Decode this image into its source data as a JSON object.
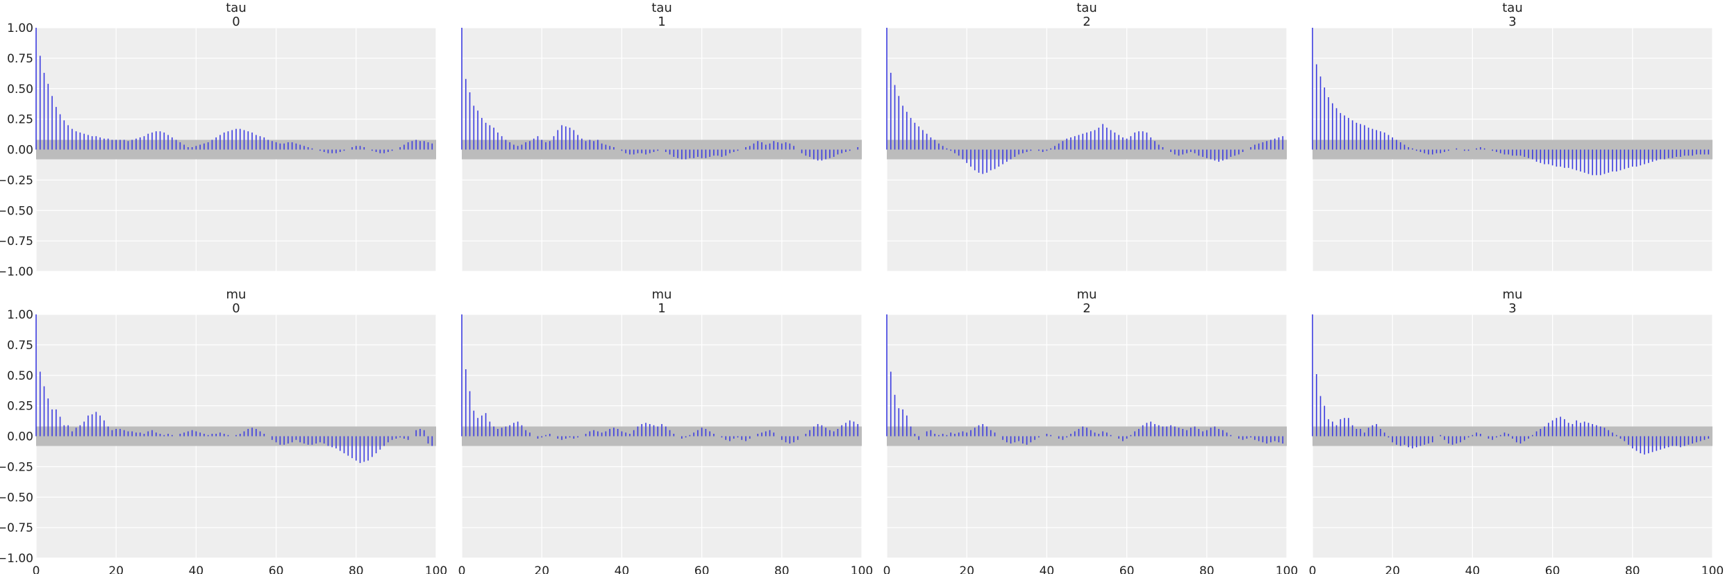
{
  "figure": {
    "bar_color": "#3b3be0",
    "band_color": "#bcbcbc",
    "panel_color": "#eeeeee"
  },
  "chart_data": [
    {
      "type": "bar",
      "title": "tau",
      "subtitle": "0",
      "xlim": [
        0,
        100
      ],
      "ylim": [
        -1,
        1
      ],
      "grid": true,
      "xticks": [
        "0",
        "20",
        "40",
        "60",
        "80",
        "100"
      ],
      "yticks": [
        "1.00",
        "0.75",
        "0.50",
        "0.25",
        "0.00",
        "−0.25",
        "−0.50",
        "−0.75",
        "−1.00"
      ],
      "band": [
        -0.08,
        0.08
      ],
      "lags": "0-99",
      "values": [
        1.0,
        0.77,
        0.63,
        0.54,
        0.44,
        0.35,
        0.29,
        0.24,
        0.2,
        0.17,
        0.15,
        0.14,
        0.13,
        0.12,
        0.11,
        0.11,
        0.1,
        0.09,
        0.09,
        0.08,
        0.08,
        0.08,
        0.08,
        0.07,
        0.08,
        0.09,
        0.1,
        0.11,
        0.13,
        0.14,
        0.15,
        0.15,
        0.14,
        0.12,
        0.1,
        0.08,
        0.06,
        0.04,
        0.02,
        0.02,
        0.03,
        0.04,
        0.05,
        0.06,
        0.08,
        0.1,
        0.12,
        0.14,
        0.15,
        0.16,
        0.17,
        0.17,
        0.16,
        0.15,
        0.14,
        0.12,
        0.11,
        0.1,
        0.08,
        0.07,
        0.06,
        0.05,
        0.05,
        0.06,
        0.06,
        0.05,
        0.04,
        0.03,
        0.02,
        0.01,
        0.0,
        -0.01,
        -0.02,
        -0.03,
        -0.03,
        -0.03,
        -0.02,
        -0.01,
        0.0,
        0.02,
        0.03,
        0.03,
        0.02,
        0.0,
        -0.01,
        -0.02,
        -0.03,
        -0.03,
        -0.02,
        -0.01,
        0.0,
        0.02,
        0.04,
        0.06,
        0.07,
        0.08,
        0.07,
        0.07,
        0.06,
        0.05
      ]
    },
    {
      "type": "bar",
      "title": "tau",
      "subtitle": "1",
      "xlim": [
        0,
        100
      ],
      "ylim": [
        -1,
        1
      ],
      "grid": true,
      "xticks": [
        "0",
        "20",
        "40",
        "60",
        "80",
        "100"
      ],
      "yticks": [
        "1.00",
        "0.75",
        "0.50",
        "0.25",
        "0.00",
        "−0.25",
        "−0.50",
        "−0.75",
        "−1.00"
      ],
      "band": [
        -0.08,
        0.08
      ],
      "lags": "0-99",
      "values": [
        1.0,
        0.58,
        0.47,
        0.36,
        0.32,
        0.26,
        0.22,
        0.2,
        0.18,
        0.14,
        0.11,
        0.08,
        0.06,
        0.04,
        0.03,
        0.04,
        0.06,
        0.07,
        0.09,
        0.11,
        0.08,
        0.06,
        0.07,
        0.11,
        0.16,
        0.2,
        0.19,
        0.18,
        0.16,
        0.12,
        0.09,
        0.07,
        0.08,
        0.07,
        0.08,
        0.05,
        0.04,
        0.03,
        0.02,
        0.0,
        -0.01,
        -0.03,
        -0.04,
        -0.04,
        -0.03,
        -0.03,
        -0.04,
        -0.03,
        -0.02,
        -0.01,
        0.0,
        -0.02,
        -0.04,
        -0.06,
        -0.07,
        -0.08,
        -0.08,
        -0.07,
        -0.07,
        -0.06,
        -0.07,
        -0.07,
        -0.06,
        -0.05,
        -0.05,
        -0.06,
        -0.05,
        -0.03,
        -0.02,
        -0.01,
        0.0,
        0.02,
        0.03,
        0.05,
        0.07,
        0.06,
        0.04,
        0.05,
        0.07,
        0.06,
        0.05,
        0.06,
        0.05,
        0.03,
        0.0,
        -0.03,
        -0.05,
        -0.06,
        -0.08,
        -0.09,
        -0.09,
        -0.08,
        -0.07,
        -0.06,
        -0.04,
        -0.03,
        -0.02,
        -0.01,
        0.0,
        0.02
      ]
    },
    {
      "type": "bar",
      "title": "tau",
      "subtitle": "2",
      "xlim": [
        0,
        100
      ],
      "ylim": [
        -1,
        1
      ],
      "grid": true,
      "xticks": [
        "0",
        "20",
        "40",
        "60",
        "80",
        "100"
      ],
      "yticks": [
        "1.00",
        "0.75",
        "0.50",
        "0.25",
        "0.00",
        "−0.25",
        "−0.50",
        "−0.75",
        "−1.00"
      ],
      "band": [
        -0.08,
        0.08
      ],
      "lags": "0-99",
      "values": [
        1.0,
        0.63,
        0.53,
        0.44,
        0.36,
        0.31,
        0.26,
        0.22,
        0.19,
        0.16,
        0.13,
        0.1,
        0.08,
        0.05,
        0.03,
        0.01,
        -0.01,
        -0.03,
        -0.05,
        -0.08,
        -0.11,
        -0.14,
        -0.17,
        -0.19,
        -0.2,
        -0.19,
        -0.17,
        -0.16,
        -0.14,
        -0.12,
        -0.1,
        -0.08,
        -0.06,
        -0.04,
        -0.03,
        -0.02,
        -0.01,
        0.0,
        -0.01,
        -0.02,
        -0.01,
        0.01,
        0.03,
        0.05,
        0.07,
        0.09,
        0.1,
        0.11,
        0.12,
        0.13,
        0.14,
        0.15,
        0.16,
        0.18,
        0.21,
        0.18,
        0.16,
        0.14,
        0.12,
        0.1,
        0.09,
        0.11,
        0.14,
        0.15,
        0.15,
        0.14,
        0.1,
        0.07,
        0.04,
        0.02,
        0.0,
        -0.02,
        -0.04,
        -0.05,
        -0.04,
        -0.03,
        -0.02,
        -0.03,
        -0.05,
        -0.06,
        -0.07,
        -0.08,
        -0.09,
        -0.1,
        -0.09,
        -0.08,
        -0.06,
        -0.05,
        -0.04,
        -0.02,
        0.0,
        0.02,
        0.04,
        0.05,
        0.06,
        0.07,
        0.08,
        0.09,
        0.1,
        0.11
      ]
    },
    {
      "type": "bar",
      "title": "tau",
      "subtitle": "3",
      "xlim": [
        0,
        100
      ],
      "ylim": [
        -1,
        1
      ],
      "grid": true,
      "xticks": [
        "0",
        "20",
        "40",
        "60",
        "80",
        "100"
      ],
      "yticks": [
        "1.00",
        "0.75",
        "0.50",
        "0.25",
        "0.00",
        "−0.25",
        "−0.50",
        "−0.75",
        "−1.00"
      ],
      "band": [
        -0.08,
        0.08
      ],
      "lags": "0-99",
      "values": [
        1.0,
        0.7,
        0.6,
        0.51,
        0.43,
        0.38,
        0.34,
        0.3,
        0.28,
        0.26,
        0.24,
        0.22,
        0.21,
        0.2,
        0.18,
        0.17,
        0.16,
        0.15,
        0.14,
        0.12,
        0.1,
        0.08,
        0.06,
        0.04,
        0.02,
        0.01,
        -0.01,
        -0.02,
        -0.03,
        -0.04,
        -0.04,
        -0.03,
        -0.03,
        -0.02,
        -0.01,
        0.0,
        0.01,
        0.0,
        -0.01,
        -0.01,
        0.0,
        0.01,
        0.02,
        0.01,
        0.0,
        -0.01,
        -0.02,
        -0.03,
        -0.04,
        -0.04,
        -0.05,
        -0.05,
        -0.05,
        -0.06,
        -0.07,
        -0.08,
        -0.1,
        -0.11,
        -0.12,
        -0.12,
        -0.13,
        -0.14,
        -0.14,
        -0.15,
        -0.15,
        -0.16,
        -0.17,
        -0.18,
        -0.19,
        -0.2,
        -0.21,
        -0.21,
        -0.21,
        -0.2,
        -0.19,
        -0.18,
        -0.18,
        -0.17,
        -0.16,
        -0.15,
        -0.14,
        -0.14,
        -0.13,
        -0.12,
        -0.11,
        -0.1,
        -0.09,
        -0.08,
        -0.08,
        -0.07,
        -0.07,
        -0.06,
        -0.06,
        -0.05,
        -0.05,
        -0.05,
        -0.04,
        -0.04,
        -0.04,
        -0.04
      ]
    },
    {
      "type": "bar",
      "title": "mu",
      "subtitle": "0",
      "xlim": [
        0,
        100
      ],
      "ylim": [
        -1,
        1
      ],
      "grid": true,
      "xticks": [
        "0",
        "20",
        "40",
        "60",
        "80",
        "100"
      ],
      "yticks": [
        "1.00",
        "0.75",
        "0.50",
        "0.25",
        "0.00",
        "−0.25",
        "−0.50",
        "−0.75",
        "−1.00"
      ],
      "band": [
        -0.08,
        0.08
      ],
      "lags": "0-99",
      "values": [
        1.0,
        0.53,
        0.41,
        0.31,
        0.22,
        0.22,
        0.16,
        0.09,
        0.09,
        0.04,
        0.07,
        0.09,
        0.12,
        0.17,
        0.18,
        0.2,
        0.17,
        0.13,
        0.08,
        0.05,
        0.06,
        0.06,
        0.05,
        0.04,
        0.04,
        0.03,
        0.03,
        0.02,
        0.04,
        0.05,
        0.03,
        0.02,
        0.01,
        0.02,
        0.01,
        0.0,
        0.02,
        0.03,
        0.04,
        0.05,
        0.04,
        0.03,
        0.02,
        0.01,
        0.02,
        0.02,
        0.03,
        0.02,
        0.01,
        0.0,
        0.01,
        0.02,
        0.04,
        0.06,
        0.07,
        0.06,
        0.04,
        0.02,
        0.0,
        -0.03,
        -0.05,
        -0.07,
        -0.07,
        -0.06,
        -0.05,
        -0.03,
        -0.05,
        -0.06,
        -0.07,
        -0.07,
        -0.06,
        -0.05,
        -0.06,
        -0.08,
        -0.09,
        -0.1,
        -0.12,
        -0.14,
        -0.16,
        -0.18,
        -0.2,
        -0.22,
        -0.21,
        -0.2,
        -0.17,
        -0.14,
        -0.11,
        -0.08,
        -0.05,
        -0.03,
        -0.02,
        -0.01,
        -0.02,
        -0.03,
        0.0,
        0.05,
        0.06,
        0.05,
        -0.06,
        -0.08
      ]
    },
    {
      "type": "bar",
      "title": "mu",
      "subtitle": "1",
      "xlim": [
        0,
        100
      ],
      "ylim": [
        -1,
        1
      ],
      "grid": true,
      "xticks": [
        "0",
        "20",
        "40",
        "60",
        "80",
        "100"
      ],
      "yticks": [
        "1.00",
        "0.75",
        "0.50",
        "0.25",
        "0.00",
        "−0.25",
        "−0.50",
        "−0.75",
        "−1.00"
      ],
      "band": [
        -0.08,
        0.08
      ],
      "lags": "0-99",
      "values": [
        1.0,
        0.55,
        0.37,
        0.21,
        0.15,
        0.17,
        0.19,
        0.12,
        0.08,
        0.06,
        0.07,
        0.08,
        0.09,
        0.11,
        0.12,
        0.09,
        0.05,
        0.03,
        0.0,
        -0.02,
        -0.01,
        0.01,
        0.02,
        0.0,
        -0.02,
        -0.03,
        -0.02,
        -0.01,
        -0.02,
        -0.01,
        0.0,
        0.02,
        0.04,
        0.05,
        0.04,
        0.03,
        0.04,
        0.06,
        0.07,
        0.06,
        0.04,
        0.03,
        0.02,
        0.05,
        0.08,
        0.1,
        0.11,
        0.1,
        0.09,
        0.08,
        0.1,
        0.08,
        0.05,
        0.02,
        0.0,
        -0.02,
        -0.01,
        0.01,
        0.03,
        0.05,
        0.07,
        0.06,
        0.04,
        0.02,
        0.0,
        -0.01,
        -0.03,
        -0.04,
        -0.02,
        -0.01,
        -0.03,
        -0.04,
        -0.02,
        0.0,
        0.02,
        0.03,
        0.04,
        0.05,
        0.03,
        0.0,
        -0.03,
        -0.05,
        -0.06,
        -0.05,
        -0.03,
        0.0,
        0.02,
        0.05,
        0.08,
        0.1,
        0.09,
        0.07,
        0.05,
        0.04,
        0.06,
        0.09,
        0.11,
        0.13,
        0.12,
        0.1
      ]
    },
    {
      "type": "bar",
      "title": "mu",
      "subtitle": "2",
      "xlim": [
        0,
        100
      ],
      "ylim": [
        -1,
        1
      ],
      "grid": true,
      "xticks": [
        "0",
        "20",
        "40",
        "60",
        "80",
        "100"
      ],
      "yticks": [
        "1.00",
        "0.75",
        "0.50",
        "0.25",
        "0.00",
        "−0.25",
        "−0.50",
        "−0.75",
        "−1.00"
      ],
      "band": [
        -0.08,
        0.08
      ],
      "lags": "0-99",
      "values": [
        1.0,
        0.53,
        0.34,
        0.23,
        0.22,
        0.17,
        0.08,
        0.02,
        -0.03,
        0.0,
        0.04,
        0.05,
        0.02,
        0.01,
        0.02,
        0.01,
        0.03,
        0.02,
        0.03,
        0.04,
        0.03,
        0.05,
        0.07,
        0.09,
        0.1,
        0.08,
        0.05,
        0.03,
        0.0,
        -0.03,
        -0.05,
        -0.06,
        -0.05,
        -0.04,
        -0.06,
        -0.07,
        -0.05,
        -0.03,
        -0.01,
        0.0,
        0.02,
        0.01,
        0.0,
        -0.02,
        -0.03,
        -0.01,
        0.02,
        0.04,
        0.06,
        0.08,
        0.07,
        0.05,
        0.03,
        0.02,
        0.04,
        0.03,
        0.01,
        0.0,
        -0.02,
        -0.04,
        -0.02,
        0.01,
        0.04,
        0.06,
        0.09,
        0.11,
        0.12,
        0.1,
        0.09,
        0.08,
        0.08,
        0.09,
        0.08,
        0.07,
        0.06,
        0.05,
        0.07,
        0.08,
        0.06,
        0.04,
        0.05,
        0.07,
        0.08,
        0.06,
        0.05,
        0.03,
        0.01,
        0.0,
        -0.02,
        -0.03,
        -0.02,
        -0.01,
        -0.03,
        -0.04,
        -0.05,
        -0.06,
        -0.05,
        -0.04,
        -0.05,
        -0.06
      ]
    },
    {
      "type": "bar",
      "title": "mu",
      "subtitle": "3",
      "xlim": [
        0,
        100
      ],
      "ylim": [
        -1,
        1
      ],
      "grid": true,
      "xticks": [
        "0",
        "20",
        "40",
        "60",
        "80",
        "100"
      ],
      "yticks": [
        "1.00",
        "0.75",
        "0.50",
        "0.25",
        "0.00",
        "−0.25",
        "−0.50",
        "−0.75",
        "−1.00"
      ],
      "band": [
        -0.08,
        0.08
      ],
      "lags": "0-99",
      "values": [
        1.0,
        0.51,
        0.33,
        0.25,
        0.14,
        0.12,
        0.09,
        0.14,
        0.15,
        0.15,
        0.09,
        0.06,
        0.06,
        0.03,
        0.07,
        0.09,
        0.1,
        0.06,
        0.03,
        -0.01,
        -0.05,
        -0.07,
        -0.08,
        -0.07,
        -0.09,
        -0.1,
        -0.09,
        -0.08,
        -0.07,
        -0.06,
        -0.05,
        0.0,
        0.01,
        -0.03,
        -0.06,
        -0.07,
        -0.06,
        -0.05,
        -0.03,
        -0.01,
        0.01,
        0.03,
        0.02,
        0.0,
        -0.02,
        -0.03,
        -0.01,
        0.01,
        0.03,
        0.02,
        -0.02,
        -0.05,
        -0.06,
        -0.04,
        -0.02,
        0.01,
        0.04,
        0.06,
        0.08,
        0.11,
        0.13,
        0.15,
        0.16,
        0.14,
        0.11,
        0.1,
        0.13,
        0.11,
        0.12,
        0.11,
        0.1,
        0.09,
        0.08,
        0.07,
        0.05,
        0.03,
        0.01,
        -0.02,
        -0.04,
        -0.07,
        -0.1,
        -0.12,
        -0.14,
        -0.15,
        -0.14,
        -0.13,
        -0.12,
        -0.11,
        -0.1,
        -0.09,
        -0.08,
        -0.08,
        -0.09,
        -0.08,
        -0.07,
        -0.06,
        -0.05,
        -0.04,
        -0.03,
        -0.02
      ]
    }
  ]
}
